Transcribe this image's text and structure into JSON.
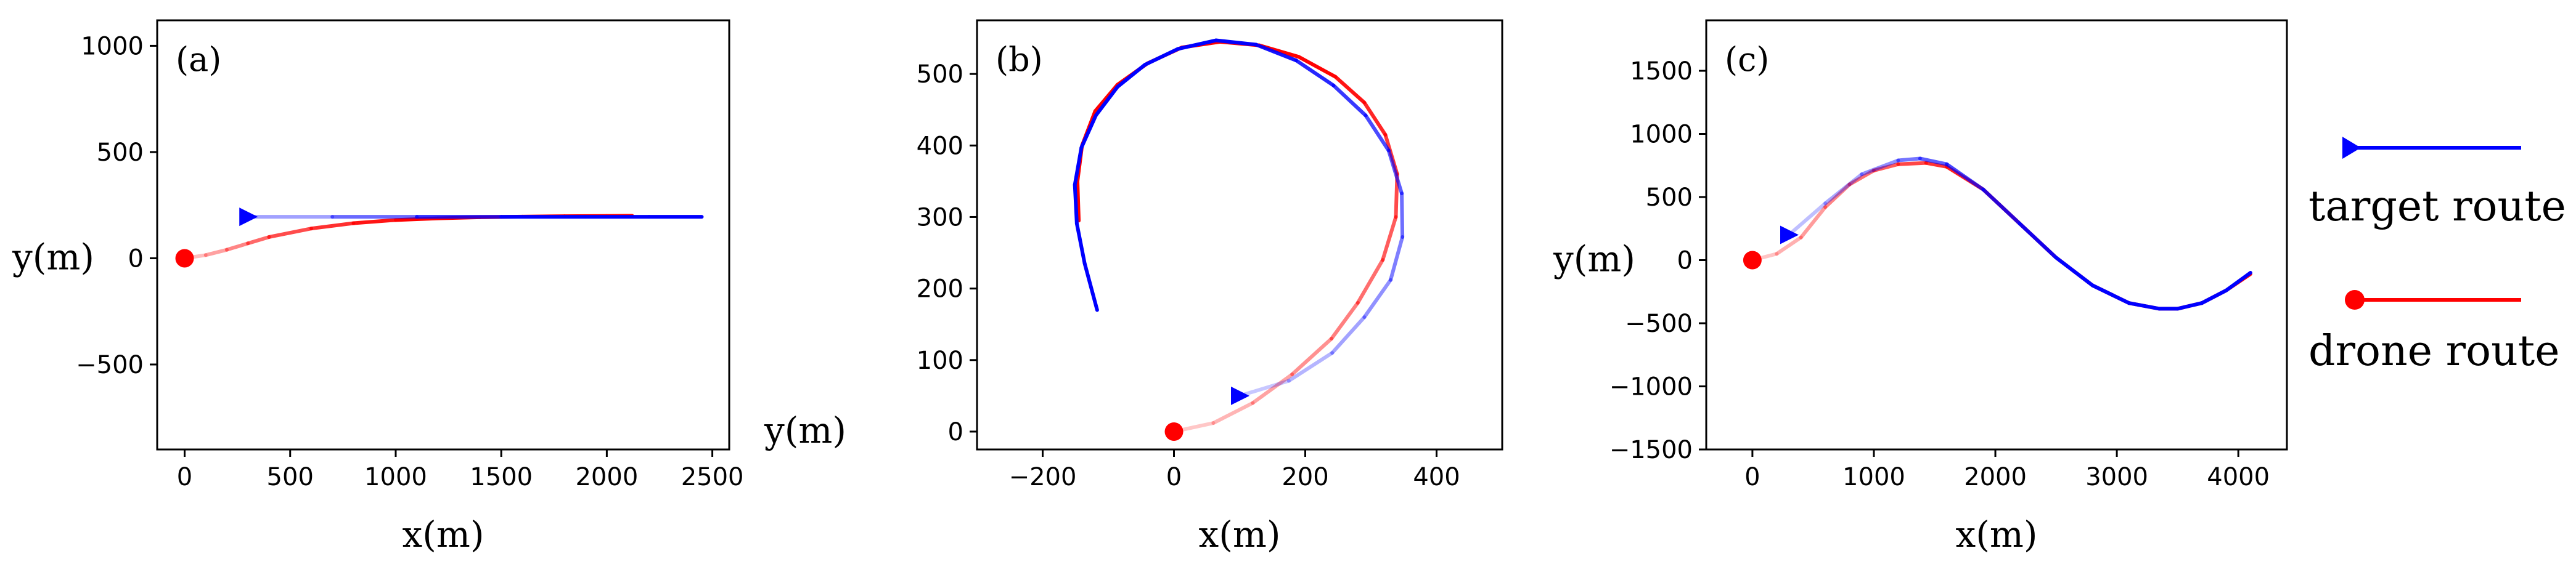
{
  "legend": {
    "target": {
      "label": "target route",
      "color": "#0000ff"
    },
    "drone": {
      "label": "drone route",
      "color": "#ff0000"
    }
  },
  "chart_data": [
    {
      "type": "line",
      "panel_label": "(a)",
      "xlabel": "x(m)",
      "ylabel": "y(m)",
      "xlim": [
        -130,
        2580
      ],
      "ylim": [
        -900,
        1120
      ],
      "xticks": [
        0,
        500,
        1000,
        1500,
        2000,
        2500
      ],
      "xticklabels": [
        "0",
        "500",
        "1000",
        "1500",
        "2000",
        "2500"
      ],
      "yticks": [
        -500,
        0,
        500,
        1000
      ],
      "yticklabels": [
        "−500",
        "0",
        "500",
        "1000"
      ],
      "series": [
        {
          "role": "target",
          "color": "#0000ff",
          "x": [
            300,
            700,
            1100,
            1500,
            1900,
            2200,
            2450
          ],
          "y": [
            195,
            195,
            195,
            195,
            195,
            195,
            195
          ]
        },
        {
          "role": "drone",
          "color": "#ff0000",
          "x": [
            0,
            100,
            200,
            300,
            400,
            600,
            800,
            1000,
            1200,
            1400,
            1600,
            1800,
            2000,
            2120
          ],
          "y": [
            0,
            15,
            40,
            70,
            100,
            140,
            165,
            180,
            188,
            193,
            196,
            198,
            199,
            200
          ]
        }
      ]
    },
    {
      "type": "line",
      "panel_label": "(b)",
      "xlabel": "x(m)",
      "ylabel": "y(m)",
      "xlim": [
        -300,
        500
      ],
      "ylim": [
        -25,
        575
      ],
      "xticks": [
        -200,
        0,
        200,
        400
      ],
      "xticklabels": [
        "−200",
        "0",
        "200",
        "400"
      ],
      "yticks": [
        0,
        100,
        200,
        300,
        400,
        500
      ],
      "yticklabels": [
        "0",
        "100",
        "200",
        "300",
        "400",
        "500"
      ],
      "series": [
        {
          "role": "target",
          "color": "#0000ff",
          "x": [
            100,
            175,
            241,
            290,
            330,
            348,
            347,
            327,
            292,
            243,
            186,
            125,
            64,
            6,
            -44,
            -86,
            -119,
            -141,
            -151,
            -148,
            -136,
            -117
          ],
          "y": [
            50,
            71,
            110,
            160,
            212,
            272,
            333,
            393,
            442,
            484,
            519,
            541,
            547,
            535,
            513,
            482,
            442,
            397,
            345,
            291,
            235,
            170
          ]
        },
        {
          "role": "drone",
          "color": "#ff0000",
          "x": [
            0,
            60,
            120,
            180,
            240,
            280,
            318,
            338,
            340,
            322,
            290,
            246,
            190,
            130,
            70,
            12,
            -40,
            -86,
            -120,
            -140,
            -147,
            -145
          ],
          "y": [
            0,
            12,
            40,
            80,
            130,
            180,
            240,
            300,
            360,
            415,
            460,
            496,
            524,
            540,
            545,
            537,
            515,
            485,
            448,
            400,
            350,
            295
          ]
        }
      ]
    },
    {
      "type": "line",
      "panel_label": "(c)",
      "xlabel": "x(m)",
      "ylabel": "y(m)",
      "xlim": [
        -380,
        4400
      ],
      "ylim": [
        -1500,
        1900
      ],
      "xticks": [
        0,
        1000,
        2000,
        3000,
        4000
      ],
      "xticklabels": [
        "0",
        "1000",
        "2000",
        "3000",
        "4000"
      ],
      "yticks": [
        -1500,
        -1000,
        -500,
        0,
        500,
        1000,
        1500
      ],
      "yticklabels": [
        "−1500",
        "−1000",
        "−500",
        "0",
        "500",
        "1000",
        "1500"
      ],
      "series": [
        {
          "role": "target",
          "color": "#0000ff",
          "x": [
            300,
            600,
            900,
            1200,
            1380,
            1600,
            1900,
            2200,
            2500,
            2800,
            3100,
            3350,
            3500,
            3700,
            3900,
            4100
          ],
          "y": [
            200,
            450,
            680,
            790,
            805,
            760,
            560,
            290,
            20,
            -200,
            -340,
            -385,
            -385,
            -340,
            -240,
            -100
          ]
        },
        {
          "role": "drone",
          "color": "#ff0000",
          "x": [
            0,
            200,
            400,
            600,
            800,
            1000,
            1200,
            1430,
            1600,
            1900,
            2200,
            2500,
            2800,
            3100,
            3350,
            3500,
            3700,
            3900,
            4100
          ],
          "y": [
            0,
            50,
            180,
            420,
            600,
            710,
            760,
            770,
            740,
            560,
            290,
            20,
            -200,
            -340,
            -385,
            -385,
            -340,
            -240,
            -110
          ]
        }
      ]
    }
  ]
}
